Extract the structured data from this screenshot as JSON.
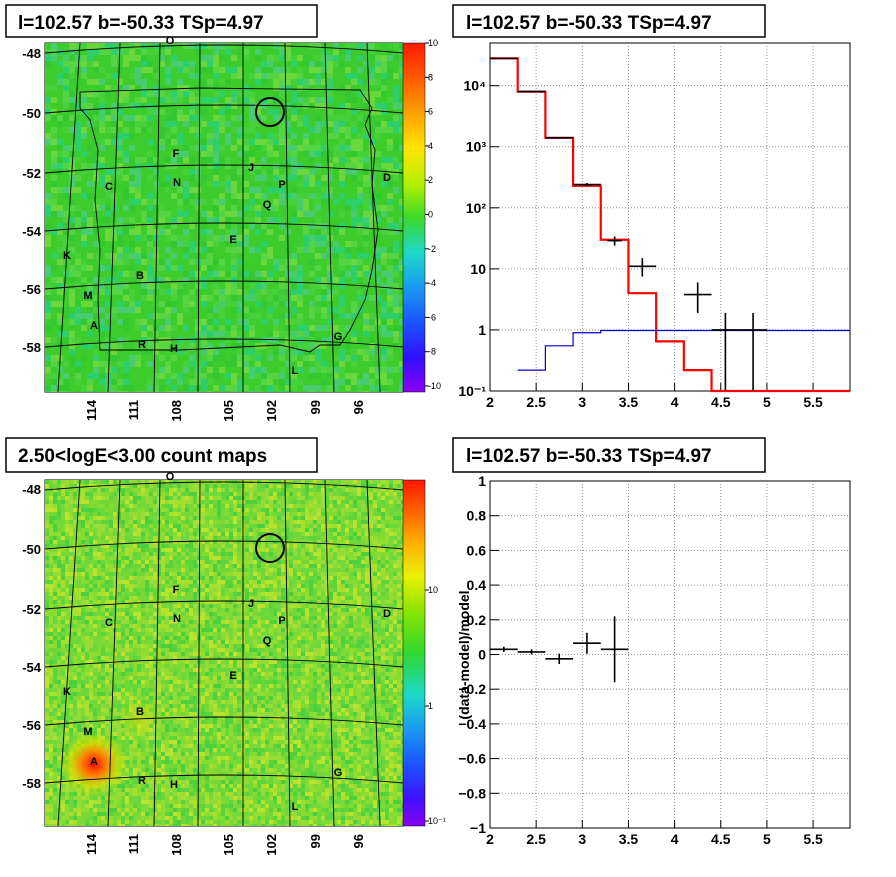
{
  "colors": {
    "map_bg": "#38cc2a",
    "grid": "#000000",
    "model_line": "#ff0000",
    "background_line": "#0000cc",
    "data_points": "#000000"
  },
  "panels": [
    {
      "title": "l=102.57 b=-50.33 TSp=4.97",
      "type": "significance_map",
      "y_ticks": [
        "-48",
        "-50",
        "-52",
        "-54",
        "-56",
        "-58"
      ],
      "x_ticks": [
        "114",
        "111",
        "108",
        "105",
        "102",
        "99",
        "96"
      ],
      "palette_ticks": [
        "10",
        "8",
        "6",
        "4",
        "2",
        "0",
        "-2",
        "-4",
        "-6",
        "-8",
        "-10"
      ],
      "sources": [
        "O",
        "F",
        "J",
        "N",
        "C",
        "P",
        "D",
        "Q",
        "E",
        "K",
        "B",
        "M",
        "A",
        "G",
        "R",
        "H",
        "L"
      ]
    },
    {
      "title": "2.50<logE<3.00 count maps",
      "type": "count_map",
      "y_ticks": [
        "-48",
        "-50",
        "-52",
        "-54",
        "-56",
        "-58"
      ],
      "x_ticks": [
        "114",
        "111",
        "108",
        "105",
        "102",
        "99",
        "96"
      ],
      "palette_ticks": [
        "10",
        "1",
        "10⁻¹"
      ],
      "sources": [
        "O",
        "F",
        "J",
        "N",
        "C",
        "P",
        "D",
        "Q",
        "E",
        "K",
        "B",
        "M",
        "A",
        "G",
        "R",
        "H",
        "L"
      ]
    }
  ],
  "chart_data": [
    {
      "type": "line",
      "title": "l=102.57 b=-50.33 TSp=4.97",
      "xlabel": "",
      "ylabel": "",
      "xlim": [
        2,
        5.9
      ],
      "ylim": [
        0.1,
        50000
      ],
      "log_y": true,
      "grid": true,
      "x_ticks": [
        "2",
        "2.5",
        "3",
        "3.5",
        "4",
        "4.5",
        "5",
        "5.5"
      ],
      "y_ticks": [
        "10⁻¹",
        "1",
        "10",
        "10²",
        "10³",
        "10⁴"
      ],
      "series": [
        {
          "style": "step",
          "color": "#ff0000",
          "bin_edges": [
            2.0,
            2.3,
            2.6,
            2.9,
            3.2,
            3.5,
            3.8,
            4.1,
            4.4,
            5.9
          ],
          "values": [
            28000,
            8000,
            1400,
            230,
            30,
            4,
            0.65,
            0.22,
            0.1
          ]
        },
        {
          "style": "step",
          "color": "#0000cc",
          "bin_edges": [
            2.3,
            2.6,
            2.9,
            3.2,
            5.9
          ],
          "values": [
            0.22,
            0.55,
            0.9,
            0.98
          ]
        },
        {
          "style": "points",
          "color": "#000000",
          "points": [
            {
              "x": 2.15,
              "y": 28000,
              "xerr": 0.15,
              "ylo": 27500,
              "yhi": 28500
            },
            {
              "x": 2.45,
              "y": 8000,
              "xerr": 0.15,
              "ylo": 7850,
              "yhi": 8150
            },
            {
              "x": 2.75,
              "y": 1400,
              "xerr": 0.15,
              "ylo": 1360,
              "yhi": 1440
            },
            {
              "x": 3.05,
              "y": 240,
              "xerr": 0.15,
              "ylo": 225,
              "yhi": 255
            },
            {
              "x": 3.35,
              "y": 29,
              "xerr": 0.08,
              "ylo": 24,
              "yhi": 34
            },
            {
              "x": 3.65,
              "y": 11,
              "xerr": 0.15,
              "ylo": 7.5,
              "yhi": 15
            },
            {
              "x": 4.25,
              "y": 3.8,
              "xerr": 0.15,
              "ylo": 1.9,
              "yhi": 6.0
            },
            {
              "x": 4.55,
              "y": 1.0,
              "xerr": 0.15,
              "ylo": 0.1,
              "yhi": 1.9
            },
            {
              "x": 4.85,
              "y": 1.0,
              "xerr": 0.15,
              "ylo": 0.1,
              "yhi": 1.9
            }
          ]
        }
      ]
    },
    {
      "type": "scatter",
      "title": "l=102.57 b=-50.33 TSp=4.97",
      "xlabel": "",
      "ylabel": "(data-model)/model",
      "xlim": [
        2,
        5.9
      ],
      "ylim": [
        -1,
        1
      ],
      "grid": true,
      "x_ticks": [
        "2",
        "2.5",
        "3",
        "3.5",
        "4",
        "4.5",
        "5",
        "5.5"
      ],
      "y_ticks": [
        "1",
        "0.8",
        "0.6",
        "0.4",
        "0.2",
        "0",
        "−0.2",
        "−0.4",
        "−0.6",
        "−0.8",
        "−1"
      ],
      "series": [
        {
          "style": "points",
          "color": "#000000",
          "points": [
            {
              "x": 2.15,
              "y": 0.03,
              "xerr": 0.15,
              "err": 0.015
            },
            {
              "x": 2.45,
              "y": 0.015,
              "xerr": 0.15,
              "err": 0.015
            },
            {
              "x": 2.75,
              "y": -0.025,
              "xerr": 0.15,
              "err": 0.03
            },
            {
              "x": 3.05,
              "y": 0.065,
              "xerr": 0.15,
              "err": 0.06
            },
            {
              "x": 3.35,
              "y": 0.03,
              "xerr": 0.15,
              "err": 0.19
            }
          ]
        }
      ]
    }
  ]
}
